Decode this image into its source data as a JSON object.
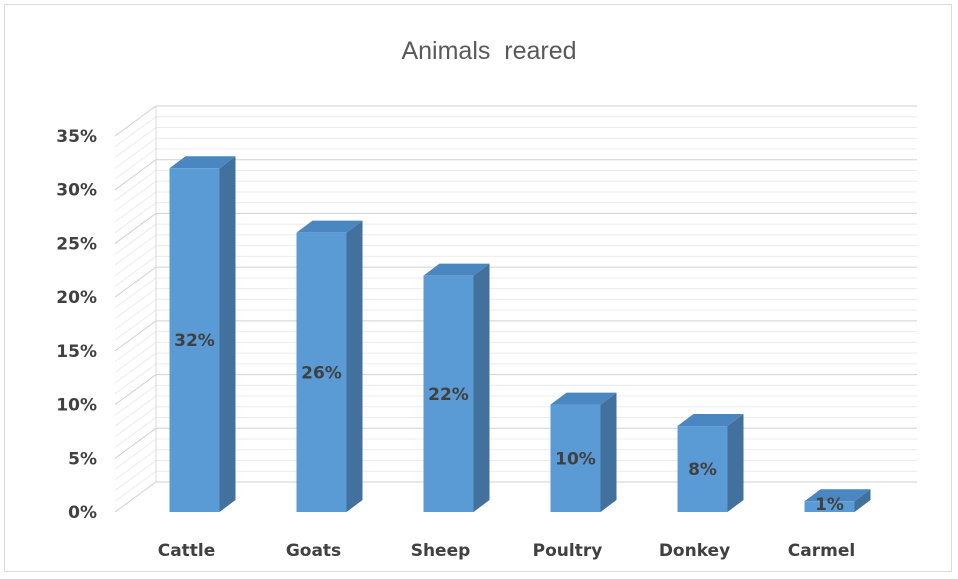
{
  "chart_data": {
    "type": "bar",
    "title": "Animals  reared",
    "categories": [
      "Cattle",
      "Goats",
      "Sheep",
      "Poultry",
      "Donkey",
      "Carmel"
    ],
    "values": [
      32,
      26,
      22,
      10,
      8,
      1
    ],
    "data_labels": [
      "32%",
      "26%",
      "22%",
      "10%",
      "8%",
      "1%"
    ],
    "y_ticks": [
      "0%",
      "5%",
      "10%",
      "15%",
      "20%",
      "25%",
      "30%",
      "35%"
    ],
    "ylim": [
      0,
      35
    ],
    "grid": true,
    "legend": "none",
    "bar_color": "#5b9bd5",
    "bar_side_color": "#41719c",
    "bar_top_color": "#4a86bf"
  }
}
